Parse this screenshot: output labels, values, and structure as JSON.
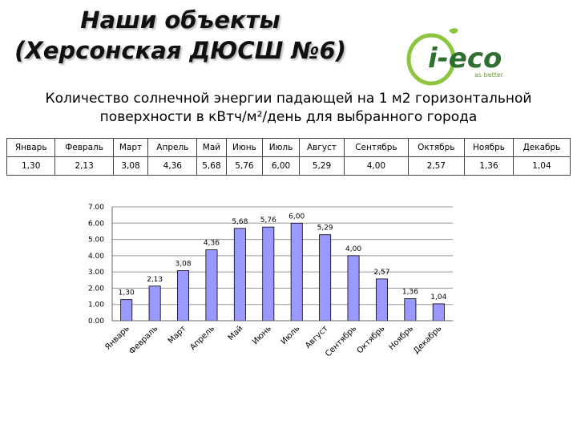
{
  "title": [
    "Наши объекты",
    "(Херсонская ДЮСШ №6)"
  ],
  "logo": {
    "text": "i-eco",
    "tagline": "as better"
  },
  "subtitle": "Количество солнечной энергии падающей на 1 м2 горизонтальной поверхности в кВтч/м²/день для выбранного города",
  "table": {
    "header": [
      "Январь",
      "Февраль",
      "Март",
      "Апрель",
      "Май",
      "Июнь",
      "Июль",
      "Август",
      "Сентябрь",
      "Октябрь",
      "Ноябрь",
      "Декабрь"
    ],
    "row": [
      "1,30",
      "2,13",
      "3,08",
      "4,36",
      "5,68",
      "5,76",
      "6,00",
      "5,29",
      "4,00",
      "2,57",
      "1,36",
      "1,04"
    ]
  },
  "chart_data": {
    "type": "bar",
    "categories": [
      "Январь",
      "Февраль",
      "Март",
      "Апрель",
      "Май",
      "Июнь",
      "Июль",
      "Август",
      "Сентябрь",
      "Октябрь",
      "Ноябрь",
      "Декабрь"
    ],
    "values": [
      1.3,
      2.13,
      3.08,
      4.36,
      5.68,
      5.76,
      6.0,
      5.29,
      4.0,
      2.57,
      1.36,
      1.04
    ],
    "value_labels": [
      "1,30",
      "2,13",
      "3,08",
      "4,36",
      "5,68",
      "5,76",
      "6,00",
      "5,29",
      "4,00",
      "2,57",
      "1,36",
      "1,04"
    ],
    "color": "#9999ff",
    "ylim": [
      0,
      7
    ],
    "yticks": [
      {
        "value": 0,
        "label": "0.00"
      },
      {
        "value": 1,
        "label": "1.00"
      },
      {
        "value": 2,
        "label": "2.00"
      },
      {
        "value": 3,
        "label": "3.00"
      },
      {
        "value": 4,
        "label": "4.00"
      },
      {
        "value": 5,
        "label": "5.00"
      },
      {
        "value": 6,
        "label": "6.00"
      },
      {
        "value": 7,
        "label": "7.00"
      }
    ],
    "grid": true
  }
}
